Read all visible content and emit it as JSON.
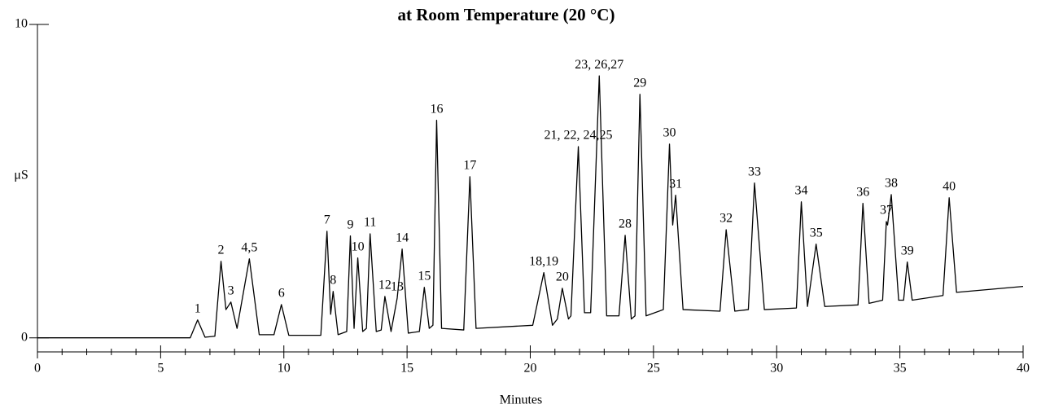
{
  "chart_data": {
    "type": "line",
    "title": "at Room Temperature (20 °C)",
    "x_label": "Minutes",
    "y_label": "μS",
    "xlim": [
      0,
      40
    ],
    "ylim": [
      -0.45,
      10
    ],
    "xticks": [
      0,
      5,
      10,
      15,
      20,
      25,
      30,
      35,
      40
    ],
    "xminorticks": [
      1,
      2,
      3,
      4,
      6,
      7,
      8,
      9,
      11,
      12,
      13,
      14,
      16,
      17,
      18,
      19,
      21,
      22,
      23,
      24,
      26,
      27,
      28,
      29,
      31,
      32,
      33,
      34,
      36,
      37,
      38,
      39
    ],
    "yticks": [
      0,
      10
    ],
    "series": [
      {
        "color": "#000000",
        "x": [
          0,
          6.2,
          6.5,
          6.8,
          7.2,
          7.45,
          7.65,
          7.85,
          8.1,
          8.6,
          9.0,
          9.6,
          9.9,
          10.2,
          11.5,
          11.75,
          11.9,
          12.0,
          12.2,
          12.55,
          12.7,
          12.85,
          13.0,
          13.2,
          13.35,
          13.5,
          13.75,
          13.95,
          14.1,
          14.35,
          14.6,
          14.8,
          15.05,
          15.5,
          15.7,
          15.9,
          16.05,
          16.2,
          16.4,
          17.3,
          17.55,
          17.8,
          20.1,
          20.55,
          20.9,
          21.1,
          21.3,
          21.55,
          21.65,
          21.95,
          22.2,
          22.45,
          22.8,
          23.1,
          23.6,
          23.85,
          24.1,
          24.25,
          24.45,
          24.7,
          25.4,
          25.65,
          25.78,
          25.9,
          26.2,
          27.7,
          27.95,
          28.3,
          28.85,
          29.1,
          29.5,
          30.8,
          31.0,
          31.25,
          31.6,
          31.95,
          33.3,
          33.5,
          33.75,
          34.3,
          34.45,
          34.5,
          34.65,
          34.95,
          35.15,
          35.3,
          35.5,
          36.75,
          37.0,
          37.3,
          40
        ],
        "values": [
          0,
          0,
          0.57,
          0.02,
          0.05,
          2.44,
          0.9,
          1.14,
          0.3,
          2.52,
          0.1,
          0.1,
          1.06,
          0.08,
          0.08,
          3.4,
          0.75,
          1.48,
          0.1,
          0.2,
          3.25,
          0.3,
          2.55,
          0.2,
          0.3,
          3.32,
          0.2,
          0.25,
          1.32,
          0.2,
          1.27,
          2.83,
          0.15,
          0.2,
          1.61,
          0.3,
          0.4,
          6.94,
          0.3,
          0.25,
          5.14,
          0.3,
          0.4,
          2.08,
          0.4,
          0.6,
          1.58,
          0.6,
          0.7,
          6.1,
          0.8,
          0.8,
          8.36,
          0.7,
          0.7,
          3.27,
          0.6,
          0.7,
          7.77,
          0.7,
          0.9,
          6.18,
          3.6,
          4.55,
          0.9,
          0.85,
          3.45,
          0.85,
          0.9,
          4.94,
          0.9,
          0.95,
          4.34,
          1.0,
          2.99,
          1.0,
          1.05,
          4.29,
          1.1,
          1.2,
          3.71,
          3.6,
          4.57,
          1.2,
          1.2,
          2.42,
          1.2,
          1.35,
          4.47,
          1.45,
          1.64
        ]
      }
    ],
    "annotations": [
      {
        "text": "1",
        "x": 6.5,
        "y": 0.57
      },
      {
        "text": "2",
        "x": 7.45,
        "y": 2.44
      },
      {
        "text": "3",
        "x": 7.85,
        "y": 1.14
      },
      {
        "text": "4,5",
        "x": 8.6,
        "y": 2.52
      },
      {
        "text": "6",
        "x": 9.9,
        "y": 1.06
      },
      {
        "text": "7",
        "x": 11.75,
        "y": 3.4
      },
      {
        "text": "8",
        "x": 12.0,
        "y": 1.48
      },
      {
        "text": "9",
        "x": 12.7,
        "y": 3.25
      },
      {
        "text": "10",
        "x": 13.0,
        "y": 2.55
      },
      {
        "text": "11",
        "x": 13.5,
        "y": 3.32
      },
      {
        "text": "12",
        "x": 14.1,
        "y": 1.32
      },
      {
        "text": "13",
        "x": 14.6,
        "y": 1.27
      },
      {
        "text": "14",
        "x": 14.8,
        "y": 2.83
      },
      {
        "text": "15",
        "x": 15.7,
        "y": 1.61
      },
      {
        "text": "16",
        "x": 16.2,
        "y": 6.94
      },
      {
        "text": "17",
        "x": 17.55,
        "y": 5.14
      },
      {
        "text": "18,19",
        "x": 20.55,
        "y": 2.08
      },
      {
        "text": "20",
        "x": 21.3,
        "y": 1.58
      },
      {
        "text": "21, 22, 24,25",
        "x": 21.95,
        "y": 6.1
      },
      {
        "text": "23, 26,27",
        "x": 22.8,
        "y": 8.36
      },
      {
        "text": "28",
        "x": 23.85,
        "y": 3.27
      },
      {
        "text": "29",
        "x": 24.45,
        "y": 7.77
      },
      {
        "text": "30",
        "x": 25.65,
        "y": 6.18
      },
      {
        "text": "31",
        "x": 25.9,
        "y": 4.55
      },
      {
        "text": "32",
        "x": 27.95,
        "y": 3.45
      },
      {
        "text": "33",
        "x": 29.1,
        "y": 4.94
      },
      {
        "text": "34",
        "x": 31.0,
        "y": 4.34
      },
      {
        "text": "35",
        "x": 31.6,
        "y": 2.99
      },
      {
        "text": "36",
        "x": 33.5,
        "y": 4.29
      },
      {
        "text": "37",
        "x": 34.45,
        "y": 3.71
      },
      {
        "text": "38",
        "x": 34.65,
        "y": 4.57
      },
      {
        "text": "39",
        "x": 35.3,
        "y": 2.42
      },
      {
        "text": "40",
        "x": 37.0,
        "y": 4.47
      }
    ]
  }
}
